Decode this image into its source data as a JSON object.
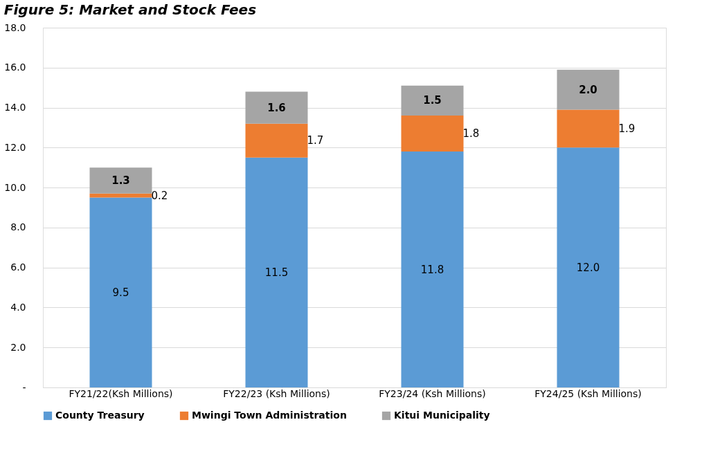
{
  "chart_data": {
    "type": "bar",
    "stacked": true,
    "title": "Figure 5: Market and Stock Fees",
    "categories": [
      "FY21/22(Ksh Millions)",
      "FY22/23 (Ksh Millions)",
      "FY23/24 (Ksh Millions)",
      "FY24/25 (Ksh Millions)"
    ],
    "series": [
      {
        "name": "County Treasury",
        "color": "#5b9bd5",
        "values": [
          9.5,
          11.5,
          11.8,
          12.0
        ],
        "value_labels": [
          "9.5",
          "11.5",
          "11.8",
          "12.0"
        ]
      },
      {
        "name": "Mwingi Town Administration",
        "color": "#ed7d31",
        "values": [
          0.2,
          1.7,
          1.8,
          1.9
        ],
        "value_labels": [
          "0.2",
          "1.7",
          "1.8",
          "1.9"
        ]
      },
      {
        "name": "Kitui Municipality",
        "color": "#a5a5a5",
        "values": [
          1.3,
          1.6,
          1.5,
          2.0
        ],
        "value_labels": [
          "1.3",
          "1.6",
          "1.5",
          "2.0"
        ]
      }
    ],
    "ylim": [
      0,
      18
    ],
    "yticks": [
      {
        "value": 0,
        "label": "-"
      },
      {
        "value": 2,
        "label": "2.0"
      },
      {
        "value": 4,
        "label": "4.0"
      },
      {
        "value": 6,
        "label": "6.0"
      },
      {
        "value": 8,
        "label": "8.0"
      },
      {
        "value": 10,
        "label": "10.0"
      },
      {
        "value": 12,
        "label": "12.0"
      },
      {
        "value": 14,
        "label": "14.0"
      },
      {
        "value": 16,
        "label": "16.0"
      },
      {
        "value": 18,
        "label": "18.0"
      }
    ],
    "grid": "y",
    "legend": "bottom"
  }
}
